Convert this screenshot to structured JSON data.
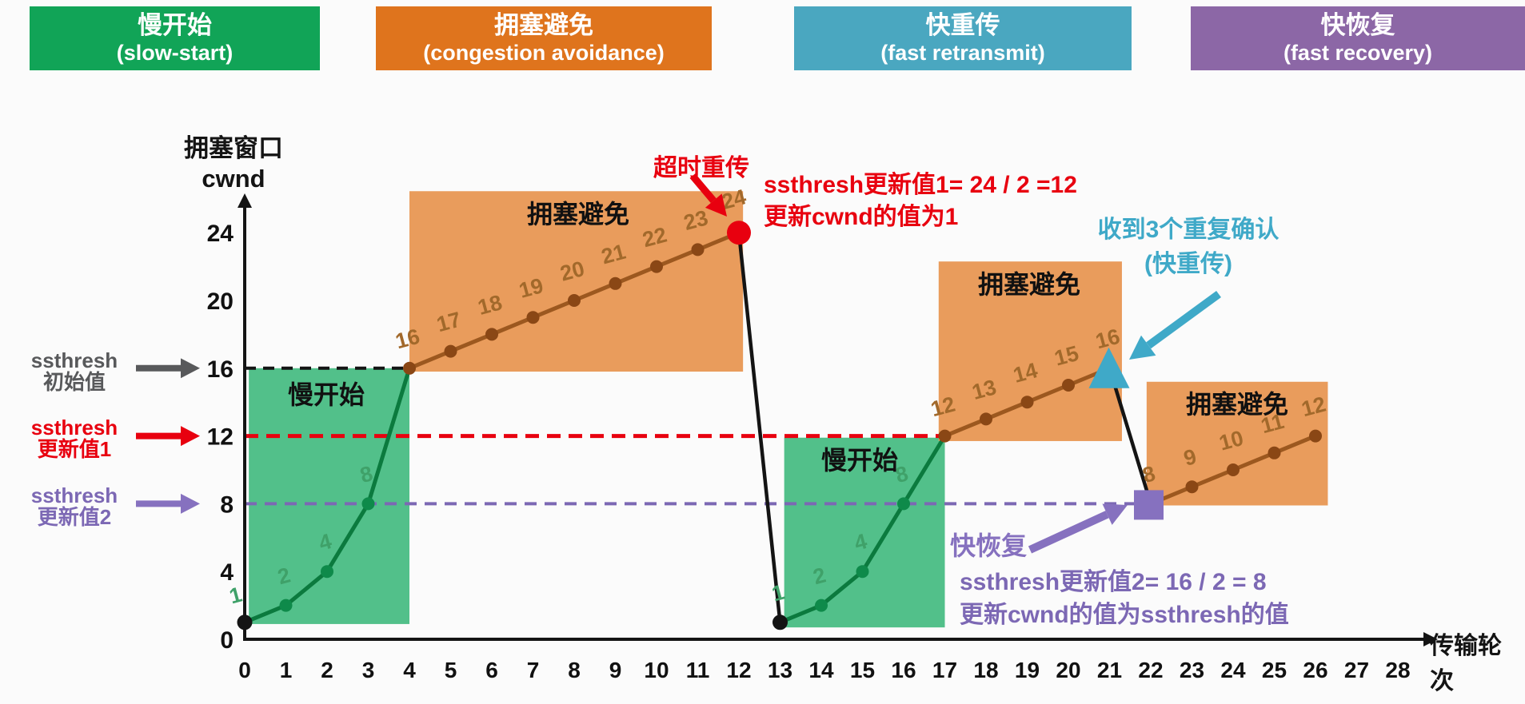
{
  "palette": {
    "green_header": "#11a457",
    "green_region": "#52c08a",
    "green_line": "#0b7a3e",
    "green_dot": "#0e8a4a",
    "green_label": "#3fa169",
    "orange_header": "#df741d",
    "orange_region": "#e99c5c",
    "brown_line": "#9c581f",
    "brown_dot": "#8a4715",
    "brown_label": "#a2692b",
    "teal_header": "#4aa7c0",
    "teal": "#3fa9c8",
    "purple_header": "#8c67a6",
    "purple": "#8671bf",
    "purple_text": "#7c68b4",
    "red": "#e8000f",
    "gray": "#58595b",
    "black": "#141414"
  },
  "phase_headers": [
    {
      "title": "慢开始",
      "subtitle": "(slow-start)",
      "color": "#11a457"
    },
    {
      "title": "拥塞避免",
      "subtitle": "(congestion avoidance)",
      "color": "#df741d"
    },
    {
      "title": "快重传",
      "subtitle": "(fast retransmit)",
      "color": "#4aa7c0"
    },
    {
      "title": "快恢复",
      "subtitle": "(fast recovery)",
      "color": "#8c67a6"
    }
  ],
  "chart_data": {
    "type": "line",
    "ylabel_lines": [
      "拥塞窗口",
      "cwnd"
    ],
    "xlabel": "传输轮次",
    "xlim": [
      0,
      28
    ],
    "ylim": [
      0,
      26
    ],
    "grid": false,
    "xticks": [
      0,
      1,
      2,
      3,
      4,
      5,
      6,
      7,
      8,
      9,
      10,
      11,
      12,
      13,
      14,
      15,
      16,
      17,
      18,
      19,
      20,
      21,
      22,
      23,
      24,
      25,
      26,
      27,
      28
    ],
    "yticks": [
      0,
      4,
      8,
      12,
      16,
      20,
      24
    ],
    "regions": [
      {
        "label": "慢开始",
        "phase": "slow-start",
        "color_role": "green_region",
        "x": [
          0.1,
          4.0
        ],
        "y": [
          0.9,
          16.0
        ]
      },
      {
        "label": "拥塞避免",
        "phase": "congestion-avoidance",
        "color_role": "orange_region",
        "x": [
          4.0,
          12.1
        ],
        "y": [
          15.8,
          26.45
        ]
      },
      {
        "label": "慢开始",
        "phase": "slow-start",
        "color_role": "green_region",
        "x": [
          13.1,
          17.0
        ],
        "y": [
          0.7,
          11.9
        ]
      },
      {
        "label": "拥塞避免",
        "phase": "congestion-avoidance",
        "color_role": "orange_region",
        "x": [
          16.85,
          21.3
        ],
        "y": [
          11.7,
          22.3
        ]
      },
      {
        "label": "拥塞避免",
        "phase": "congestion-avoidance",
        "color_role": "orange_region",
        "x": [
          21.9,
          26.3
        ],
        "y": [
          7.9,
          15.2
        ]
      }
    ],
    "guides": [
      {
        "name": "ssthresh-initial-line",
        "y": 16,
        "x": [
          0,
          4
        ],
        "color_role": "black",
        "dash": "14 9",
        "width": 4
      },
      {
        "name": "ssthresh-update1-line",
        "y": 12,
        "x": [
          0,
          17
        ],
        "color_role": "red",
        "dash": "17 10",
        "width": 5
      },
      {
        "name": "ssthresh-update2-line",
        "y": 8,
        "x": [
          0,
          22
        ],
        "color_role": "purple_text",
        "dash": "15 10",
        "width": 4
      }
    ],
    "segments": [
      {
        "name": "slow-start-1",
        "color_role": "green_line",
        "width": 5,
        "points": [
          [
            0,
            1
          ],
          [
            1,
            2
          ],
          [
            2,
            4
          ],
          [
            3,
            8
          ],
          [
            4,
            16
          ]
        ]
      },
      {
        "name": "congestion-avoidance-1",
        "color_role": "brown_line",
        "width": 5,
        "points": [
          [
            4,
            16
          ],
          [
            5,
            17
          ],
          [
            6,
            18
          ],
          [
            7,
            19
          ],
          [
            8,
            20
          ],
          [
            9,
            21
          ],
          [
            10,
            22
          ],
          [
            11,
            23
          ],
          [
            12,
            24
          ]
        ]
      },
      {
        "name": "timeout-drop",
        "color_role": "black",
        "width": 4.5,
        "points": [
          [
            12,
            24
          ],
          [
            13,
            1
          ]
        ]
      },
      {
        "name": "slow-start-2",
        "color_role": "green_line",
        "width": 5,
        "points": [
          [
            13,
            1
          ],
          [
            14,
            2
          ],
          [
            15,
            4
          ],
          [
            16,
            8
          ],
          [
            17,
            12
          ]
        ]
      },
      {
        "name": "congestion-avoidance-2",
        "color_role": "brown_line",
        "width": 5,
        "points": [
          [
            17,
            12
          ],
          [
            18,
            13
          ],
          [
            19,
            14
          ],
          [
            20,
            15
          ],
          [
            21,
            16
          ]
        ]
      },
      {
        "name": "fast-recovery-drop",
        "color_role": "black",
        "width": 4.5,
        "points": [
          [
            21,
            16
          ],
          [
            22,
            8
          ]
        ]
      },
      {
        "name": "congestion-avoidance-3",
        "color_role": "brown_line",
        "width": 5,
        "points": [
          [
            22,
            8
          ],
          [
            23,
            9
          ],
          [
            24,
            10
          ],
          [
            25,
            11
          ],
          [
            26,
            12
          ]
        ]
      }
    ],
    "dots": [
      {
        "x": 0,
        "y": 1,
        "c": "black"
      },
      {
        "x": 13,
        "y": 1,
        "c": "black"
      },
      {
        "x": 1,
        "y": 2,
        "c": "green_dot"
      },
      {
        "x": 2,
        "y": 4,
        "c": "green_dot"
      },
      {
        "x": 3,
        "y": 8,
        "c": "green_dot"
      },
      {
        "x": 14,
        "y": 2,
        "c": "green_dot"
      },
      {
        "x": 15,
        "y": 4,
        "c": "green_dot"
      },
      {
        "x": 16,
        "y": 8,
        "c": "green_dot"
      },
      {
        "x": 4,
        "y": 16,
        "c": "brown_dot"
      },
      {
        "x": 5,
        "y": 17,
        "c": "brown_dot"
      },
      {
        "x": 6,
        "y": 18,
        "c": "brown_dot"
      },
      {
        "x": 7,
        "y": 19,
        "c": "brown_dot"
      },
      {
        "x": 8,
        "y": 20,
        "c": "brown_dot"
      },
      {
        "x": 9,
        "y": 21,
        "c": "brown_dot"
      },
      {
        "x": 10,
        "y": 22,
        "c": "brown_dot"
      },
      {
        "x": 11,
        "y": 23,
        "c": "brown_dot"
      },
      {
        "x": 17,
        "y": 12,
        "c": "brown_dot"
      },
      {
        "x": 18,
        "y": 13,
        "c": "brown_dot"
      },
      {
        "x": 19,
        "y": 14,
        "c": "brown_dot"
      },
      {
        "x": 20,
        "y": 15,
        "c": "brown_dot"
      },
      {
        "x": 23,
        "y": 9,
        "c": "brown_dot"
      },
      {
        "x": 24,
        "y": 10,
        "c": "brown_dot"
      },
      {
        "x": 25,
        "y": 11,
        "c": "brown_dot"
      },
      {
        "x": 26,
        "y": 12,
        "c": "brown_dot"
      }
    ],
    "point_labels": [
      {
        "x": 0,
        "y": 1,
        "t": "1",
        "c": "green_label"
      },
      {
        "x": 1,
        "y": 2,
        "t": "2",
        "c": "green_label"
      },
      {
        "x": 2,
        "y": 4,
        "t": "4",
        "c": "green_label"
      },
      {
        "x": 3,
        "y": 8,
        "t": "8",
        "c": "green_label"
      },
      {
        "x": 4,
        "y": 16,
        "t": "16",
        "c": "brown_label"
      },
      {
        "x": 5,
        "y": 17,
        "t": "17",
        "c": "brown_label"
      },
      {
        "x": 6,
        "y": 18,
        "t": "18",
        "c": "brown_label"
      },
      {
        "x": 7,
        "y": 19,
        "t": "19",
        "c": "brown_label"
      },
      {
        "x": 8,
        "y": 20,
        "t": "20",
        "c": "brown_label"
      },
      {
        "x": 9,
        "y": 21,
        "t": "21",
        "c": "brown_label"
      },
      {
        "x": 10,
        "y": 22,
        "t": "22",
        "c": "brown_label"
      },
      {
        "x": 11,
        "y": 23,
        "t": "23",
        "c": "brown_label"
      },
      {
        "x": 12,
        "y": 24,
        "t": "24",
        "c": "brown_label"
      },
      {
        "x": 13,
        "y": 1,
        "t": "1",
        "c": "green_label"
      },
      {
        "x": 14,
        "y": 2,
        "t": "2",
        "c": "green_label"
      },
      {
        "x": 15,
        "y": 4,
        "t": "4",
        "c": "green_label"
      },
      {
        "x": 16,
        "y": 8,
        "t": "8",
        "c": "green_label"
      },
      {
        "x": 17,
        "y": 12,
        "t": "12",
        "c": "brown_label"
      },
      {
        "x": 18,
        "y": 13,
        "t": "13",
        "c": "brown_label"
      },
      {
        "x": 19,
        "y": 14,
        "t": "14",
        "c": "brown_label"
      },
      {
        "x": 20,
        "y": 15,
        "t": "15",
        "c": "brown_label"
      },
      {
        "x": 21,
        "y": 16,
        "t": "16",
        "c": "brown_label"
      },
      {
        "x": 22,
        "y": 8,
        "t": "8",
        "c": "brown_label"
      },
      {
        "x": 23,
        "y": 9,
        "t": "9",
        "c": "brown_label"
      },
      {
        "x": 24,
        "y": 10,
        "t": "10",
        "c": "brown_label"
      },
      {
        "x": 25,
        "y": 11,
        "t": "11",
        "c": "brown_label"
      },
      {
        "x": 26,
        "y": 12,
        "t": "12",
        "c": "brown_label"
      }
    ]
  },
  "side_labels": [
    {
      "lines": [
        "ssthresh",
        "初始值"
      ],
      "color": "#58595b",
      "y": 16
    },
    {
      "lines": [
        "ssthresh",
        "更新值1"
      ],
      "color": "#e8000f",
      "y": 12
    },
    {
      "lines": [
        "ssthresh",
        "更新值2"
      ],
      "color": "#7c68b4",
      "y": 8
    }
  ],
  "annotations": {
    "timeout": {
      "text": "超时重传"
    },
    "ssthresh1": {
      "line1": "ssthresh更新值1= 24 / 2 =12",
      "line2": "更新cwnd的值为1"
    },
    "dup_ack": {
      "line1": "收到3个重复确认",
      "line2": "(快重传)"
    },
    "fast_recovery": {
      "text": "快恢复"
    },
    "ssthresh2": {
      "line1": "ssthresh更新值2= 16 / 2 = 8",
      "line2": "更新cwnd的值为ssthresh的值"
    }
  },
  "markers": {
    "timeout_dot": {
      "x": 12,
      "y": 24
    },
    "dup_ack_triangle": {
      "x": 21,
      "y": 16
    },
    "fast_recovery_square": {
      "x": 22,
      "y": 8
    },
    "start_dots": [
      {
        "x": 0,
        "y": 1
      },
      {
        "x": 13,
        "y": 1
      }
    ]
  }
}
